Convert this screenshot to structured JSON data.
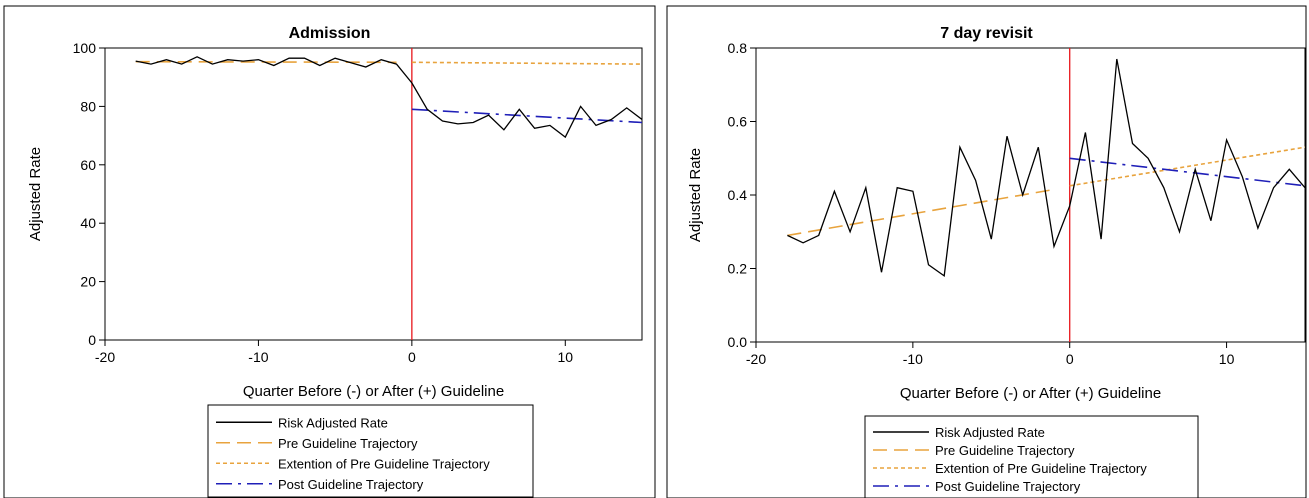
{
  "chart_data": [
    {
      "type": "line",
      "title": "Admission",
      "xlabel": "Quarter Before (-) or After (+) Guideline",
      "ylabel": "Adjusted Rate",
      "xlim": [
        -20,
        15
      ],
      "ylim": [
        0,
        100
      ],
      "xticks": [
        -20,
        -10,
        0,
        10
      ],
      "yticks": [
        0,
        20,
        40,
        60,
        80,
        100
      ],
      "guideline_x": 0,
      "legend_position": "bottom",
      "series": [
        {
          "name": "Risk Adjusted Rate",
          "color": "#000000",
          "style": "solid",
          "x": [
            -18,
            -17,
            -16,
            -15,
            -14,
            -13,
            -12,
            -11,
            -10,
            -9,
            -8,
            -7,
            -6,
            -5,
            -4,
            -3,
            -2,
            -1,
            0,
            1,
            2,
            3,
            4,
            5,
            6,
            7,
            8,
            9,
            10,
            11,
            12,
            13,
            14,
            15
          ],
          "y": [
            95.5,
            94.5,
            96,
            94.5,
            97,
            94.5,
            96,
            95.5,
            96,
            94,
            96.5,
            96.5,
            94,
            96.5,
            95,
            93.5,
            96,
            94.5,
            88,
            79,
            75,
            74,
            74.5,
            77,
            72,
            79,
            72.5,
            73.5,
            69.5,
            80,
            73.5,
            75.5,
            79.5,
            75.5
          ]
        },
        {
          "name": "Pre Guideline Trajectory",
          "color": "#E8A33D",
          "style": "longdash",
          "x": [
            -18,
            -1
          ],
          "y": [
            95.3,
            95.1
          ]
        },
        {
          "name": "Extention of Pre Guideline Trajectory",
          "color": "#E8A33D",
          "style": "shortdash",
          "x": [
            0,
            15
          ],
          "y": [
            95.1,
            94.5
          ]
        },
        {
          "name": "Post Guideline Trajectory",
          "color": "#1F1FB8",
          "style": "dashdot",
          "x": [
            0,
            15
          ],
          "y": [
            79,
            74.5
          ]
        }
      ]
    },
    {
      "type": "line",
      "title": "7 day revisit",
      "xlabel": "Quarter Before (-) or After (+) Guideline",
      "ylabel": "Adjusted Rate",
      "xlim": [
        -20,
        15
      ],
      "ylim": [
        0,
        0.8
      ],
      "xticks": [
        -20,
        -10,
        0,
        10
      ],
      "yticks": [
        "0.0",
        "0.2",
        "0.4",
        "0.6",
        "0.8"
      ],
      "guideline_x": 0,
      "legend_position": "bottom",
      "series": [
        {
          "name": "Risk Adjusted Rate",
          "color": "#000000",
          "style": "solid",
          "x": [
            -18,
            -17,
            -16,
            -15,
            -14,
            -13,
            -12,
            -11,
            -10,
            -9,
            -8,
            -7,
            -6,
            -5,
            -4,
            -3,
            -2,
            -1,
            0,
            1,
            2,
            3,
            4,
            5,
            6,
            7,
            8,
            9,
            10,
            11,
            12,
            13,
            14,
            15
          ],
          "y": [
            0.29,
            0.27,
            0.29,
            0.41,
            0.3,
            0.42,
            0.19,
            0.42,
            0.41,
            0.21,
            0.18,
            0.53,
            0.44,
            0.28,
            0.56,
            0.4,
            0.53,
            0.26,
            0.37,
            0.57,
            0.28,
            0.77,
            0.54,
            0.5,
            0.42,
            0.3,
            0.47,
            0.33,
            0.55,
            0.45,
            0.31,
            0.42,
            0.47,
            0.42
          ]
        },
        {
          "name": "Pre Guideline Trajectory",
          "color": "#E8A33D",
          "style": "longdash",
          "x": [
            -18,
            -1
          ],
          "y": [
            0.29,
            0.415
          ]
        },
        {
          "name": "Extention of Pre Guideline Trajectory",
          "color": "#E8A33D",
          "style": "shortdash",
          "x": [
            0,
            15
          ],
          "y": [
            0.425,
            0.53
          ]
        },
        {
          "name": "Post Guideline Trajectory",
          "color": "#1F1FB8",
          "style": "dashdot",
          "x": [
            0,
            15
          ],
          "y": [
            0.5,
            0.425
          ]
        }
      ]
    }
  ],
  "legend_items": [
    {
      "label": "Risk Adjusted Rate",
      "color": "#000000",
      "style": "solid"
    },
    {
      "label": "Pre Guideline Trajectory",
      "color": "#E8A33D",
      "style": "longdash"
    },
    {
      "label": "Extention of Pre Guideline Trajectory",
      "color": "#E8A33D",
      "style": "shortdash"
    },
    {
      "label": "Post Guideline Trajectory",
      "color": "#1F1FB8",
      "style": "dashdot"
    }
  ],
  "guideline_color": "#E8161B"
}
